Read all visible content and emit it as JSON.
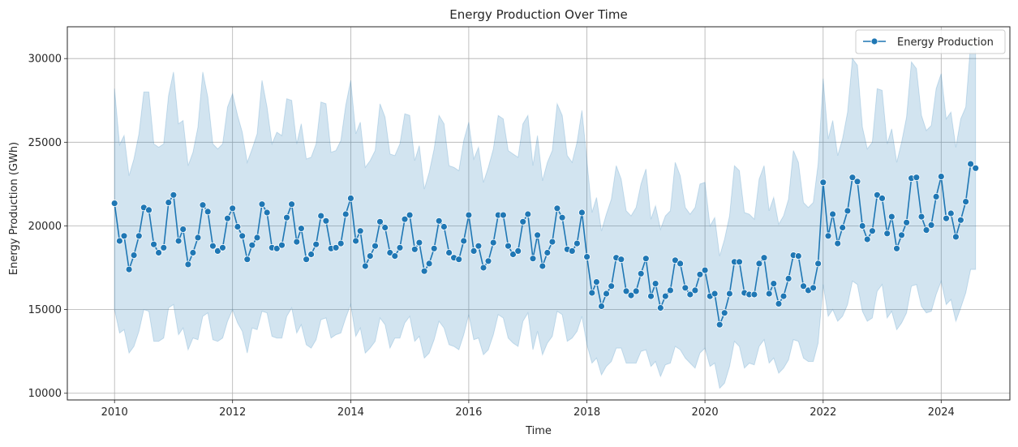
{
  "chart_data": {
    "type": "line",
    "title": "Energy Production Over Time",
    "xlabel": "Time",
    "ylabel": "Energy Production (GWh)",
    "xlim": [
      "2009-03-15",
      "2025-03-01"
    ],
    "ylim": [
      9600,
      31900
    ],
    "grid": true,
    "legend_position": "top-right",
    "x_ticks": [
      "2010",
      "2012",
      "2014",
      "2016",
      "2018",
      "2020",
      "2022",
      "2024"
    ],
    "y_ticks": [
      10000,
      15000,
      20000,
      25000,
      30000
    ],
    "line_color": "#1f77b4",
    "band_color": "#1f77b4",
    "series": [
      {
        "name": "Energy Production",
        "start": "2010-01",
        "frequency": "monthly",
        "values": [
          21350,
          19100,
          19400,
          17400,
          18250,
          19400,
          21100,
          20950,
          18900,
          18400,
          18700,
          21400,
          21850,
          19100,
          19800,
          17700,
          18400,
          19300,
          21250,
          20850,
          18800,
          18500,
          18700,
          20450,
          21050,
          19950,
          19400,
          18000,
          18850,
          19300,
          21300,
          20800,
          18700,
          18650,
          18850,
          20500,
          21300,
          19050,
          19850,
          18000,
          18300,
          18900,
          20600,
          20300,
          18650,
          18700,
          18950,
          20700,
          21650,
          19100,
          19700,
          17600,
          18200,
          18800,
          20250,
          19900,
          18400,
          18200,
          18700,
          20400,
          20650,
          18600,
          19000,
          17300,
          17750,
          18650,
          20300,
          19950,
          18400,
          18100,
          18000,
          19100,
          20650,
          18500,
          18800,
          17500,
          17900,
          19000,
          20650,
          20650,
          18800,
          18300,
          18500,
          20250,
          20700,
          18050,
          19450,
          17600,
          18400,
          19050,
          21050,
          20500,
          18600,
          18500,
          18950,
          20800,
          18150,
          16000,
          16650,
          15200,
          15950,
          16400,
          18100,
          18000,
          16100,
          15850,
          16100,
          17150,
          18050,
          15800,
          16550,
          15100,
          15800,
          16150,
          17950,
          17750,
          16300,
          15900,
          16150,
          17100,
          17350,
          15800,
          15950,
          14100,
          14800,
          15950,
          17850,
          17850,
          16000,
          15900,
          15900,
          17750,
          18100,
          15950,
          16550,
          15350,
          15800,
          16850,
          18250,
          18200,
          16400,
          16150,
          16300,
          17750,
          22600,
          19400,
          20700,
          18950,
          19900,
          20900,
          22900,
          22650,
          20000,
          19200,
          19700,
          21850,
          21650,
          19550,
          20550,
          18650,
          19450,
          20200,
          22850,
          22900,
          20550,
          19750,
          20050,
          21750,
          22950,
          20450,
          20750,
          19350,
          20350,
          21450,
          23700,
          23450
        ]
      }
    ],
    "confidence_band": {
      "upper": [
        28200,
        24850,
        25400,
        23000,
        24000,
        25500,
        28000,
        28000,
        24900,
        24700,
        24900,
        27800,
        29200,
        26100,
        26300,
        23600,
        24400,
        25900,
        29200,
        27700,
        24900,
        24600,
        24900,
        27100,
        27900,
        26600,
        25600,
        23800,
        24600,
        25500,
        28700,
        27100,
        24900,
        25600,
        25400,
        27600,
        27500,
        24900,
        26100,
        24000,
        24100,
        24900,
        27400,
        27300,
        24400,
        24500,
        25100,
        27200,
        28700,
        25500,
        26200,
        23500,
        23900,
        24500,
        27300,
        26500,
        24300,
        24200,
        24900,
        26700,
        26600,
        23900,
        24800,
        22200,
        23200,
        24600,
        26600,
        26100,
        23600,
        23500,
        23300,
        25100,
        26200,
        24000,
        24700,
        22600,
        23500,
        24600,
        26600,
        26400,
        24500,
        24300,
        24100,
        26100,
        26600,
        23600,
        25400,
        22700,
        23800,
        24500,
        27300,
        26600,
        24200,
        23800,
        25000,
        26900,
        23900,
        20800,
        21700,
        19700,
        20700,
        21600,
        23600,
        22800,
        20900,
        20600,
        21100,
        22500,
        23400,
        20400,
        21200,
        19800,
        20600,
        20900,
        23800,
        23000,
        21100,
        20700,
        21100,
        22500,
        22600,
        20000,
        20500,
        18200,
        19200,
        20600,
        23600,
        23300,
        20800,
        20700,
        20400,
        22800,
        23600,
        20900,
        21700,
        20100,
        20600,
        21600,
        24500,
        23800,
        21400,
        21100,
        21400,
        23700,
        28800,
        25200,
        26300,
        24200,
        25200,
        26800,
        30000,
        29600,
        25900,
        24600,
        25000,
        28200,
        28100,
        24900,
        25800,
        23800,
        25000,
        26500,
        29800,
        29400,
        26600,
        25700,
        26000,
        28200,
        29100,
        26400,
        26800,
        24700,
        26400,
        27100,
        30900,
        30500
      ],
      "lower": [
        15000,
        13600,
        13800,
        12400,
        12800,
        13700,
        15000,
        14900,
        13100,
        13100,
        13300,
        15100,
        15300,
        13500,
        13900,
        12600,
        13300,
        13200,
        14600,
        14800,
        13200,
        13100,
        13300,
        14300,
        15000,
        14200,
        13700,
        12400,
        13900,
        13800,
        14900,
        14800,
        13400,
        13300,
        13300,
        14600,
        15100,
        13600,
        14100,
        12900,
        12700,
        13200,
        14400,
        14500,
        13300,
        13500,
        13600,
        14500,
        15300,
        13400,
        13900,
        12400,
        12700,
        13100,
        14500,
        14100,
        12700,
        13300,
        13300,
        14200,
        14600,
        13100,
        13400,
        12100,
        12400,
        13200,
        14300,
        13900,
        12900,
        12800,
        12600,
        13500,
        14700,
        13200,
        13300,
        12300,
        12600,
        13500,
        14700,
        14500,
        13300,
        13000,
        12800,
        14300,
        14800,
        12600,
        13700,
        12300,
        13000,
        13400,
        14900,
        14700,
        13100,
        13300,
        13700,
        14600,
        12900,
        11800,
        12100,
        11100,
        11600,
        11900,
        12700,
        12700,
        11800,
        11800,
        11800,
        12500,
        12600,
        11600,
        11900,
        11000,
        11700,
        11800,
        12800,
        12600,
        12100,
        11800,
        11500,
        12400,
        12700,
        11600,
        11800,
        10300,
        10600,
        11600,
        13100,
        12800,
        11500,
        11800,
        11700,
        12800,
        13200,
        11800,
        12100,
        11200,
        11500,
        12000,
        13200,
        13100,
        12100,
        11900,
        11900,
        13000,
        16500,
        14600,
        15000,
        14300,
        14600,
        15300,
        16700,
        16500,
        14900,
        14300,
        14500,
        16100,
        16500,
        14500,
        14900,
        13800,
        14200,
        14800,
        16400,
        16500,
        15200,
        14800,
        14900,
        15900,
        16700,
        15300,
        15600,
        14300,
        15100,
        16000,
        17400,
        17400
      ]
    }
  }
}
